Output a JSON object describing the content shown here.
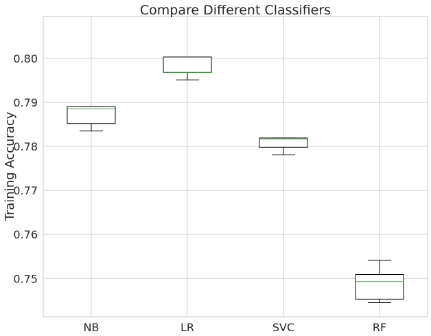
{
  "chart_data": {
    "type": "box",
    "title": "Compare Different Classifiers",
    "xlabel": "",
    "ylabel": "Training Accuracy",
    "categories": [
      "NB",
      "LR",
      "SVC",
      "RF"
    ],
    "ylim": [
      0.7413,
      0.8095
    ],
    "yticks": [
      0.75,
      0.76,
      0.77,
      0.78,
      0.79,
      0.8
    ],
    "ytick_labels": [
      "0.75",
      "0.76",
      "0.77",
      "0.78",
      "0.79",
      "0.80"
    ],
    "grid": true,
    "boxes": [
      {
        "name": "NB",
        "whislo": 0.7835,
        "q1": 0.7852,
        "med": 0.7885,
        "q3": 0.789,
        "whishi": 0.789
      },
      {
        "name": "LR",
        "whislo": 0.7951,
        "q1": 0.7968,
        "med": 0.7968,
        "q3": 0.8003,
        "whishi": 0.8003
      },
      {
        "name": "SVC",
        "whislo": 0.7781,
        "q1": 0.7798,
        "med": 0.7817,
        "q3": 0.7819,
        "whishi": 0.7819
      },
      {
        "name": "RF",
        "whislo": 0.7445,
        "q1": 0.7453,
        "med": 0.7493,
        "q3": 0.7509,
        "whishi": 0.7541
      }
    ],
    "colors": {
      "box": "#000000",
      "median": "#4c9a4c",
      "grid": "#d0d0d0"
    }
  }
}
